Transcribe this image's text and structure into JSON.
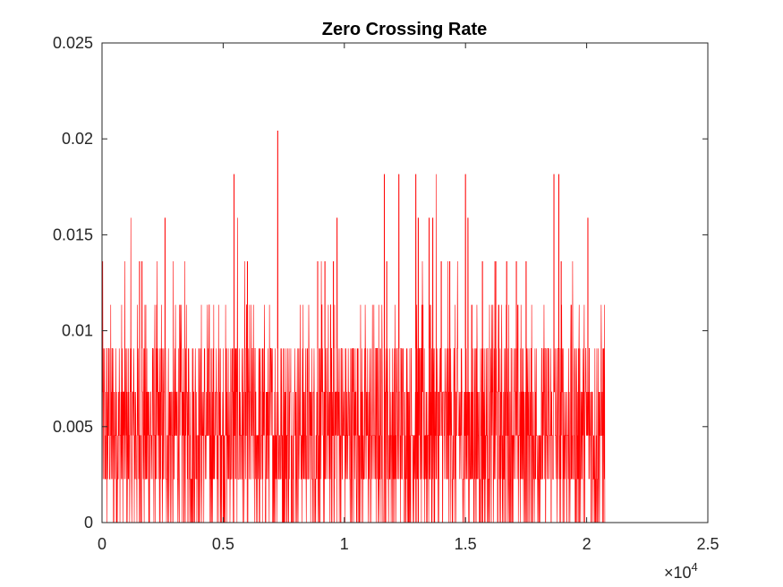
{
  "chart_data": {
    "type": "line",
    "title": "Zero Crossing Rate",
    "xlabel": "",
    "ylabel": "",
    "xlim": [
      0,
      25000
    ],
    "ylim": [
      0,
      0.025
    ],
    "x_exponent_label": "×10",
    "x_exponent_power": "4",
    "x_ticks": [
      {
        "value": 0,
        "label": "0"
      },
      {
        "value": 5000,
        "label": "0.5"
      },
      {
        "value": 10000,
        "label": "1"
      },
      {
        "value": 15000,
        "label": "1.5"
      },
      {
        "value": 20000,
        "label": "2"
      },
      {
        "value": 25000,
        "label": "2.5"
      }
    ],
    "y_ticks": [
      {
        "value": 0,
        "label": "0"
      },
      {
        "value": 0.005,
        "label": "0.005"
      },
      {
        "value": 0.01,
        "label": "0.01"
      },
      {
        "value": 0.015,
        "label": "0.015"
      },
      {
        "value": 0.02,
        "label": "0.02"
      },
      {
        "value": 0.025,
        "label": "0.025"
      }
    ],
    "grid": false,
    "legend": "none",
    "series": [
      {
        "color": "#ff0000",
        "n_points": 20750,
        "quantization_levels": [
          0,
          0.00227,
          0.00454,
          0.00681,
          0.00908,
          0.01135,
          0.01362,
          0.01589,
          0.01816,
          0.02043
        ],
        "level_weights": [
          0.14,
          0.21,
          0.26,
          0.2,
          0.14,
          0.04,
          0.007,
          0.002,
          0.001
        ],
        "peaks": [
          {
            "x": 1550,
            "y": 0.01362
          },
          {
            "x": 1650,
            "y": 0.01362
          },
          {
            "x": 2600,
            "y": 0.01589
          },
          {
            "x": 5450,
            "y": 0.01816
          },
          {
            "x": 6000,
            "y": 0.01362
          },
          {
            "x": 7250,
            "y": 0.02043
          },
          {
            "x": 8900,
            "y": 0.01362
          },
          {
            "x": 9200,
            "y": 0.01362
          },
          {
            "x": 9550,
            "y": 0.01362
          },
          {
            "x": 9700,
            "y": 0.01589
          },
          {
            "x": 11650,
            "y": 0.01816
          },
          {
            "x": 11750,
            "y": 0.01362
          },
          {
            "x": 12250,
            "y": 0.01816
          },
          {
            "x": 12950,
            "y": 0.01816
          },
          {
            "x": 13050,
            "y": 0.01589
          },
          {
            "x": 13500,
            "y": 0.01589
          },
          {
            "x": 13650,
            "y": 0.01589
          },
          {
            "x": 14000,
            "y": 0.01362
          },
          {
            "x": 14350,
            "y": 0.01362
          },
          {
            "x": 15000,
            "y": 0.01816
          },
          {
            "x": 15100,
            "y": 0.01589
          },
          {
            "x": 15700,
            "y": 0.01362
          },
          {
            "x": 16250,
            "y": 0.01362
          },
          {
            "x": 16700,
            "y": 0.01362
          },
          {
            "x": 17100,
            "y": 0.01362
          },
          {
            "x": 17500,
            "y": 0.01362
          },
          {
            "x": 18650,
            "y": 0.01816
          },
          {
            "x": 18850,
            "y": 0.01816
          },
          {
            "x": 18950,
            "y": 0.01362
          },
          {
            "x": 20050,
            "y": 0.01589
          }
        ],
        "zero_after_x": 20750
      }
    ]
  }
}
